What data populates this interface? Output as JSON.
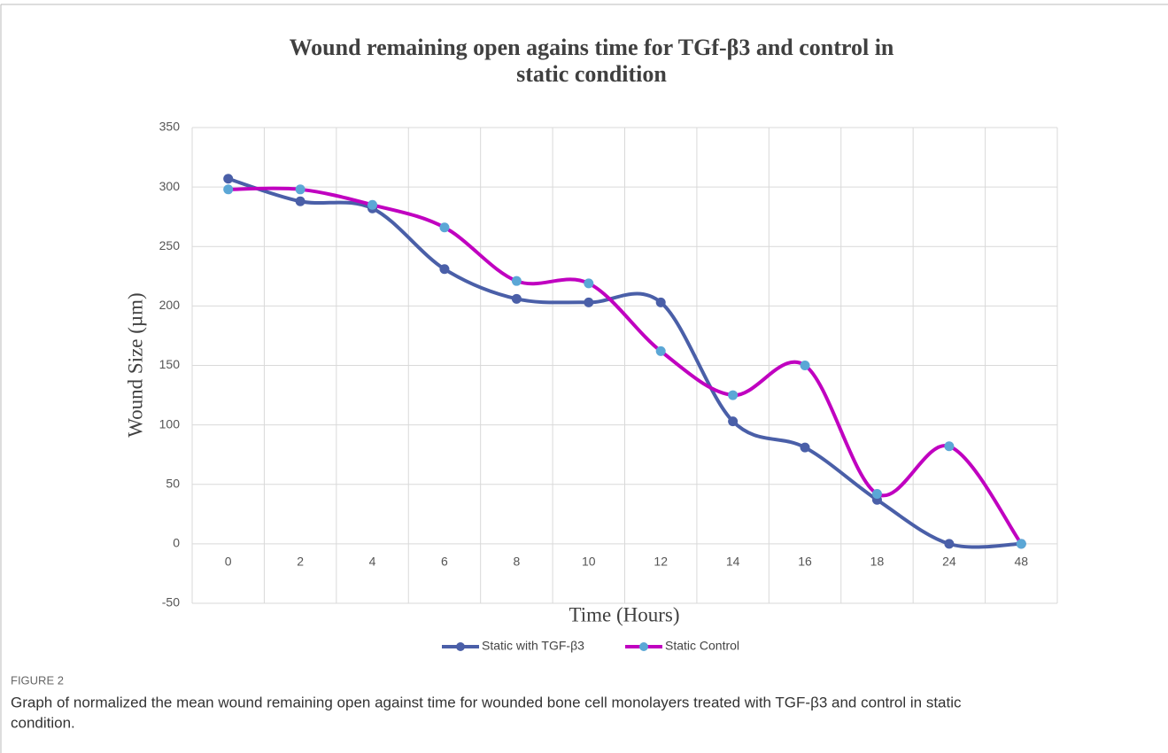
{
  "chart_data": {
    "type": "line",
    "title": "Wound remaining open agains time for TGf-β3 and control in",
    "title_line2": "static condition",
    "x_label": "Time (Hours)",
    "y_label": "Wound Size (µm)",
    "categories": [
      "0",
      "2",
      "4",
      "6",
      "8",
      "10",
      "12",
      "14",
      "16",
      "18",
      "24",
      "48"
    ],
    "series": [
      {
        "name": "Static with TGF-β3",
        "color": "#4a5fa8",
        "marker_color": "#4a5fa8",
        "values": [
          307,
          288,
          282,
          231,
          206,
          203,
          203,
          103,
          81,
          37,
          0,
          0
        ]
      },
      {
        "name": "Static Control",
        "color": "#c000c0",
        "marker_color": "#5ba7d6",
        "values": [
          298,
          298,
          285,
          266,
          221,
          219,
          162,
          125,
          150,
          42,
          82,
          0
        ]
      }
    ],
    "ylim": [
      -50,
      350
    ],
    "yticks": [
      -50,
      0,
      50,
      100,
      150,
      200,
      250,
      300,
      350
    ],
    "grid": true,
    "smooth": true,
    "legend": "bottom",
    "figure_label": "FIGURE 2",
    "caption": "Graph of normalized the mean wound remaining open against time for wounded bone cell monolayers treated with TGF-β3 and control in static",
    "caption_line2": "condition."
  }
}
